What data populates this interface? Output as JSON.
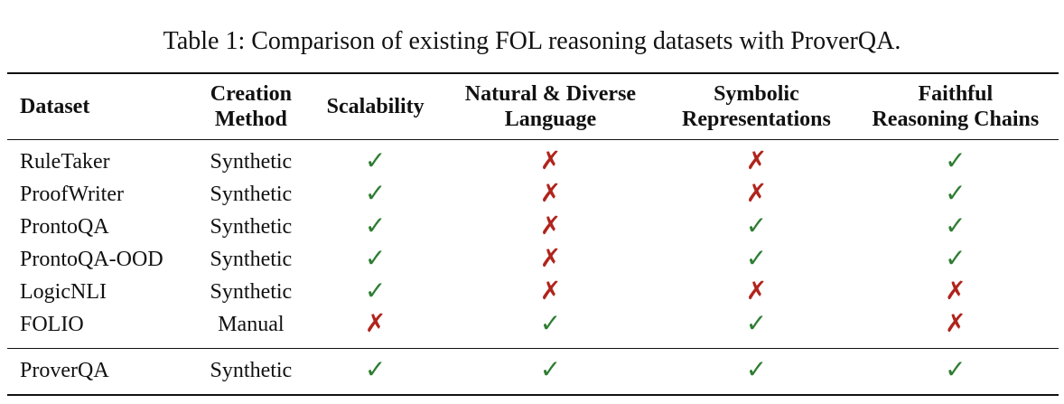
{
  "caption": "Table 1: Comparison of existing FOL reasoning datasets with ProverQA.",
  "columns": [
    {
      "line1": "Dataset",
      "line2": ""
    },
    {
      "line1": "Creation",
      "line2": "Method"
    },
    {
      "line1": "Scalability",
      "line2": ""
    },
    {
      "line1": "Natural & Diverse",
      "line2": "Language"
    },
    {
      "line1": "Symbolic",
      "line2": "Representations"
    },
    {
      "line1": "Faithful",
      "line2": "Reasoning Chains"
    }
  ],
  "glyphs": {
    "yes": "✓",
    "no": "✗"
  },
  "colors": {
    "yes": "#2e7d32",
    "no": "#b0241c"
  },
  "rows": [
    {
      "dataset": "RuleTaker",
      "method": "Synthetic",
      "marks": [
        "yes",
        "no",
        "no",
        "yes"
      ]
    },
    {
      "dataset": "ProofWriter",
      "method": "Synthetic",
      "marks": [
        "yes",
        "no",
        "no",
        "yes"
      ]
    },
    {
      "dataset": "ProntoQA",
      "method": "Synthetic",
      "marks": [
        "yes",
        "no",
        "yes",
        "yes"
      ]
    },
    {
      "dataset": "ProntoQA-OOD",
      "method": "Synthetic",
      "marks": [
        "yes",
        "no",
        "yes",
        "yes"
      ]
    },
    {
      "dataset": "LogicNLI",
      "method": "Synthetic",
      "marks": [
        "yes",
        "no",
        "no",
        "no"
      ]
    },
    {
      "dataset": "FOLIO",
      "method": "Manual",
      "marks": [
        "no",
        "yes",
        "yes",
        "no"
      ]
    }
  ],
  "ours": {
    "dataset": "ProverQA",
    "method": "Synthetic",
    "marks": [
      "yes",
      "yes",
      "yes",
      "yes"
    ]
  }
}
